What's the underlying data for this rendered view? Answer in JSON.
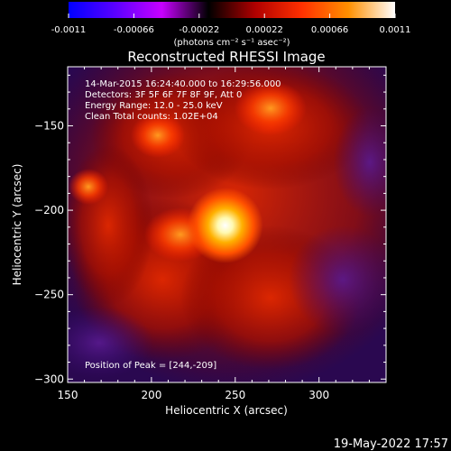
{
  "chart_data": {
    "type": "heatmap",
    "title": "Reconstructed RHESSI Image",
    "xlabel": "Heliocentric X (arcsec)",
    "ylabel": "Heliocentric Y (arcsec)",
    "xlim": [
      150,
      340
    ],
    "ylim": [
      -302,
      -115
    ],
    "xticks": [
      150,
      200,
      250,
      300
    ],
    "yticks": [
      -150,
      -200,
      -250,
      -300
    ],
    "colorbar": {
      "range": [
        -0.0011,
        0.0011
      ],
      "ticks": [
        "-0.0011",
        "-0.00066",
        "-0.00022",
        "0.00022",
        "0.00066",
        "0.0011"
      ],
      "tick_values": [
        -0.0011,
        -0.00066,
        -0.00022,
        0.00022,
        0.00066,
        0.0011
      ],
      "units": "(photons cm⁻² s⁻¹ asec⁻²)"
    },
    "annotations": [
      "14-Mar-2015 16:24:40.000 to 16:29:56.000",
      "Detectors: 3F 5F 6F 7F 8F 9F, Att 0",
      "Energy Range: 12.0 - 25.0 keV",
      "Clean     Total counts: 1.02E+04"
    ],
    "peak_label": "Position of Peak = [244,-209]",
    "peak": [
      244,
      -209
    ],
    "colors": [
      "#0000ff",
      "#5a00ff",
      "#c800ff",
      "#000000",
      "#b00000",
      "#ff3000",
      "#ff9000",
      "#ffffff"
    ]
  },
  "footer": {
    "date": "19-May-2022 17:57"
  }
}
